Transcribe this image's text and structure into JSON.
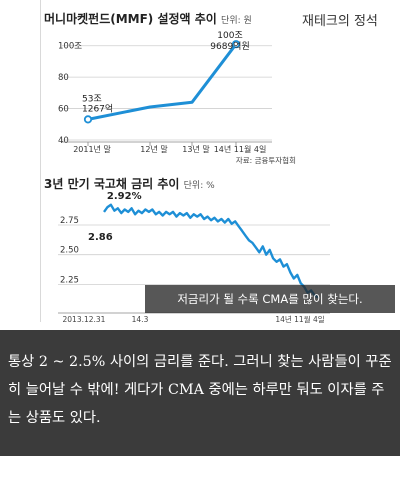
{
  "brand": "재테크의 정석",
  "chart_data": [
    {
      "type": "line",
      "title": "머니마켓펀드(MMF) 설정액 추이",
      "unit": "단위: 원",
      "categories": [
        "2011년 말",
        "12년 말",
        "13년 말",
        "14년 11월 4일"
      ],
      "values": [
        53.13,
        61,
        64,
        100.97
      ],
      "yticks": [
        40,
        60,
        80,
        100
      ],
      "ytick_labels": [
        "40",
        "60",
        "80",
        "100조"
      ],
      "ylim": [
        40,
        110
      ],
      "annotations": [
        {
          "line1": "53조",
          "line2": "1267억"
        },
        {
          "line1": "100조",
          "line2": "9689억원"
        }
      ],
      "source": "자료: 금융투자협회"
    },
    {
      "type": "line",
      "title": "3년 만기 국고채 금리 추이",
      "unit": "단위: %",
      "yticks": [
        2.25,
        2.5,
        2.75
      ],
      "ytick_labels": [
        "2.25",
        "2.50",
        "2.75"
      ],
      "ylim": [
        2.06,
        2.96
      ],
      "xtick_labels": [
        "2013.12.31",
        "14.3",
        "14년 11월 4일"
      ],
      "series": [
        {
          "values": [
            2.86,
            2.9,
            2.92,
            2.87,
            2.89,
            2.85,
            2.88,
            2.86,
            2.89,
            2.84,
            2.87,
            2.85,
            2.88,
            2.86,
            2.88,
            2.84,
            2.86,
            2.83,
            2.86,
            2.84,
            2.86,
            2.82,
            2.85,
            2.83,
            2.85,
            2.81,
            2.84,
            2.82,
            2.84,
            2.8,
            2.82,
            2.79,
            2.81,
            2.78,
            2.8,
            2.77,
            2.8,
            2.76,
            2.78,
            2.74,
            2.7,
            2.66,
            2.62,
            2.6,
            2.56,
            2.52,
            2.57,
            2.5,
            2.54,
            2.47,
            2.44,
            2.46,
            2.4,
            2.42,
            2.35,
            2.3,
            2.33,
            2.26,
            2.23,
            2.18,
            2.2,
            2.16,
            2.14
          ]
        }
      ],
      "annotations": [
        {
          "label": "2.92%",
          "value": 2.92
        },
        {
          "label": "2.86",
          "value": 2.86
        }
      ]
    }
  ],
  "caption": "저금리가 될 수록 CMA를 많이 찾는다.",
  "bottom_text": "통상 2 ~ 2.5% 사이의 금리를 준다. 그러니 찾는 사람들이 꾸준히 늘어날 수 밖에!  게다가 CMA 중에는 하루만 둬도 이자를 주는 상품도 있다."
}
